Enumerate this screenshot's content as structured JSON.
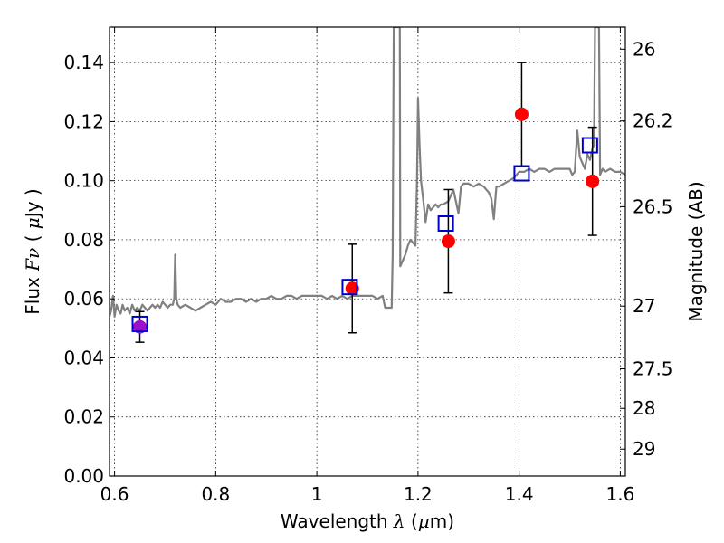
{
  "chart_data": {
    "type": "scatter",
    "xlabel": "Wavelength  λ (μm)",
    "ylabel": "Flux  Fν  ( μJy )",
    "ylabel_right": "Magnitude (AB)",
    "xlim": [
      0.59,
      1.61
    ],
    "ylim": [
      0.0,
      0.152
    ],
    "grid": true,
    "x_ticks": [
      0.6,
      0.8,
      1.0,
      1.2,
      1.4,
      1.6
    ],
    "x_tick_labels": [
      "0.6",
      "0.8",
      "1",
      "1.2",
      "1.4",
      "1.6"
    ],
    "y_ticks": [
      0.0,
      0.02,
      0.04,
      0.06,
      0.08,
      0.1,
      0.12,
      0.14
    ],
    "y_tick_labels": [
      "0.00",
      "0.02",
      "0.04",
      "0.06",
      "0.08",
      "0.10",
      "0.12",
      "0.14"
    ],
    "right_ticks": [
      {
        "mag": 26,
        "label": "26"
      },
      {
        "mag": 26.2,
        "label": "26.2"
      },
      {
        "mag": 26.5,
        "label": "26.5"
      },
      {
        "mag": 27,
        "label": "27"
      },
      {
        "mag": 27.5,
        "label": "27.5"
      },
      {
        "mag": 28,
        "label": "28"
      },
      {
        "mag": 29,
        "label": "29"
      }
    ],
    "colors": {
      "spectrum": "#808080",
      "observed": "#ff0000",
      "observed_first": "#9b0fcf",
      "model": "#0000cc",
      "errorbar": "#000000"
    },
    "series": [
      {
        "kind": "spectrum",
        "points": [
          [
            0.59,
            0.054
          ],
          [
            0.593,
            0.056
          ],
          [
            0.597,
            0.061
          ],
          [
            0.6,
            0.054
          ],
          [
            0.604,
            0.058
          ],
          [
            0.608,
            0.056
          ],
          [
            0.612,
            0.055
          ],
          [
            0.616,
            0.058
          ],
          [
            0.62,
            0.056
          ],
          [
            0.625,
            0.057
          ],
          [
            0.63,
            0.055
          ],
          [
            0.635,
            0.058
          ],
          [
            0.64,
            0.056
          ],
          [
            0.645,
            0.057
          ],
          [
            0.65,
            0.056
          ],
          [
            0.655,
            0.058
          ],
          [
            0.66,
            0.057
          ],
          [
            0.665,
            0.056
          ],
          [
            0.67,
            0.057
          ],
          [
            0.675,
            0.058
          ],
          [
            0.68,
            0.057
          ],
          [
            0.685,
            0.058
          ],
          [
            0.69,
            0.057
          ],
          [
            0.695,
            0.059
          ],
          [
            0.7,
            0.058
          ],
          [
            0.705,
            0.057
          ],
          [
            0.71,
            0.058
          ],
          [
            0.715,
            0.058
          ],
          [
            0.718,
            0.06
          ],
          [
            0.72,
            0.075
          ],
          [
            0.722,
            0.06
          ],
          [
            0.725,
            0.058
          ],
          [
            0.73,
            0.057
          ],
          [
            0.74,
            0.058
          ],
          [
            0.75,
            0.057
          ],
          [
            0.76,
            0.056
          ],
          [
            0.77,
            0.057
          ],
          [
            0.78,
            0.058
          ],
          [
            0.79,
            0.059
          ],
          [
            0.8,
            0.058
          ],
          [
            0.81,
            0.06
          ],
          [
            0.82,
            0.059
          ],
          [
            0.83,
            0.059
          ],
          [
            0.84,
            0.06
          ],
          [
            0.85,
            0.06
          ],
          [
            0.86,
            0.059
          ],
          [
            0.87,
            0.06
          ],
          [
            0.88,
            0.059
          ],
          [
            0.89,
            0.06
          ],
          [
            0.9,
            0.06
          ],
          [
            0.91,
            0.061
          ],
          [
            0.92,
            0.06
          ],
          [
            0.93,
            0.06
          ],
          [
            0.94,
            0.061
          ],
          [
            0.95,
            0.061
          ],
          [
            0.96,
            0.06
          ],
          [
            0.97,
            0.061
          ],
          [
            0.98,
            0.061
          ],
          [
            0.99,
            0.061
          ],
          [
            1.0,
            0.061
          ],
          [
            1.01,
            0.061
          ],
          [
            1.02,
            0.06
          ],
          [
            1.03,
            0.061
          ],
          [
            1.04,
            0.06
          ],
          [
            1.05,
            0.061
          ],
          [
            1.06,
            0.06
          ],
          [
            1.07,
            0.061
          ],
          [
            1.08,
            0.061
          ],
          [
            1.09,
            0.061
          ],
          [
            1.1,
            0.061
          ],
          [
            1.11,
            0.061
          ],
          [
            1.12,
            0.06
          ],
          [
            1.13,
            0.061
          ],
          [
            1.135,
            0.057
          ],
          [
            1.14,
            0.057
          ],
          [
            1.148,
            0.057
          ],
          [
            1.15,
            0.075
          ],
          [
            1.152,
            0.152
          ],
          [
            1.154,
            0.152
          ],
          [
            1.156,
            0.152
          ],
          [
            1.158,
            0.152
          ],
          [
            1.16,
            0.152
          ],
          [
            1.164,
            0.152
          ],
          [
            1.165,
            0.071
          ],
          [
            1.17,
            0.073
          ],
          [
            1.175,
            0.075
          ],
          [
            1.18,
            0.078
          ],
          [
            1.185,
            0.08
          ],
          [
            1.19,
            0.079
          ],
          [
            1.195,
            0.078
          ],
          [
            1.198,
            0.1
          ],
          [
            1.2,
            0.128
          ],
          [
            1.203,
            0.112
          ],
          [
            1.206,
            0.1
          ],
          [
            1.21,
            0.094
          ],
          [
            1.215,
            0.086
          ],
          [
            1.22,
            0.092
          ],
          [
            1.225,
            0.09
          ],
          [
            1.23,
            0.091
          ],
          [
            1.235,
            0.092
          ],
          [
            1.24,
            0.091
          ],
          [
            1.245,
            0.092
          ],
          [
            1.25,
            0.092
          ],
          [
            1.26,
            0.093
          ],
          [
            1.27,
            0.097
          ],
          [
            1.275,
            0.093
          ],
          [
            1.28,
            0.089
          ],
          [
            1.285,
            0.098
          ],
          [
            1.29,
            0.099
          ],
          [
            1.3,
            0.099
          ],
          [
            1.31,
            0.098
          ],
          [
            1.32,
            0.099
          ],
          [
            1.33,
            0.098
          ],
          [
            1.34,
            0.096
          ],
          [
            1.345,
            0.094
          ],
          [
            1.35,
            0.087
          ],
          [
            1.355,
            0.098
          ],
          [
            1.36,
            0.098
          ],
          [
            1.37,
            0.099
          ],
          [
            1.38,
            0.1
          ],
          [
            1.39,
            0.101
          ],
          [
            1.4,
            0.103
          ],
          [
            1.41,
            0.103
          ],
          [
            1.42,
            0.104
          ],
          [
            1.43,
            0.103
          ],
          [
            1.44,
            0.104
          ],
          [
            1.45,
            0.104
          ],
          [
            1.46,
            0.103
          ],
          [
            1.47,
            0.104
          ],
          [
            1.48,
            0.104
          ],
          [
            1.49,
            0.104
          ],
          [
            1.5,
            0.104
          ],
          [
            1.505,
            0.102
          ],
          [
            1.51,
            0.103
          ],
          [
            1.515,
            0.117
          ],
          [
            1.52,
            0.108
          ],
          [
            1.525,
            0.106
          ],
          [
            1.53,
            0.104
          ],
          [
            1.535,
            0.109
          ],
          [
            1.54,
            0.107
          ],
          [
            1.545,
            0.111
          ],
          [
            1.548,
            0.112
          ],
          [
            1.55,
            0.152
          ],
          [
            1.555,
            0.152
          ],
          [
            1.558,
            0.152
          ],
          [
            1.56,
            0.102
          ],
          [
            1.565,
            0.104
          ],
          [
            1.57,
            0.103
          ],
          [
            1.58,
            0.104
          ],
          [
            1.59,
            0.103
          ],
          [
            1.6,
            0.103
          ],
          [
            1.61,
            0.102
          ]
        ]
      },
      {
        "kind": "observed",
        "points": [
          {
            "x": 0.65,
            "y": 0.0505,
            "err": 0.0052
          },
          {
            "x": 1.07,
            "y": 0.0635,
            "err": 0.015
          },
          {
            "x": 1.26,
            "y": 0.0795,
            "err": 0.0175
          },
          {
            "x": 1.405,
            "y": 0.1225,
            "err": 0.0175
          },
          {
            "x": 1.545,
            "y": 0.0998,
            "err": 0.0183
          }
        ]
      },
      {
        "kind": "model",
        "points": [
          {
            "x": 0.65,
            "y": 0.0515
          },
          {
            "x": 1.065,
            "y": 0.064
          },
          {
            "x": 1.255,
            "y": 0.0855
          },
          {
            "x": 1.405,
            "y": 0.1025
          },
          {
            "x": 1.54,
            "y": 0.112
          }
        ]
      }
    ]
  }
}
